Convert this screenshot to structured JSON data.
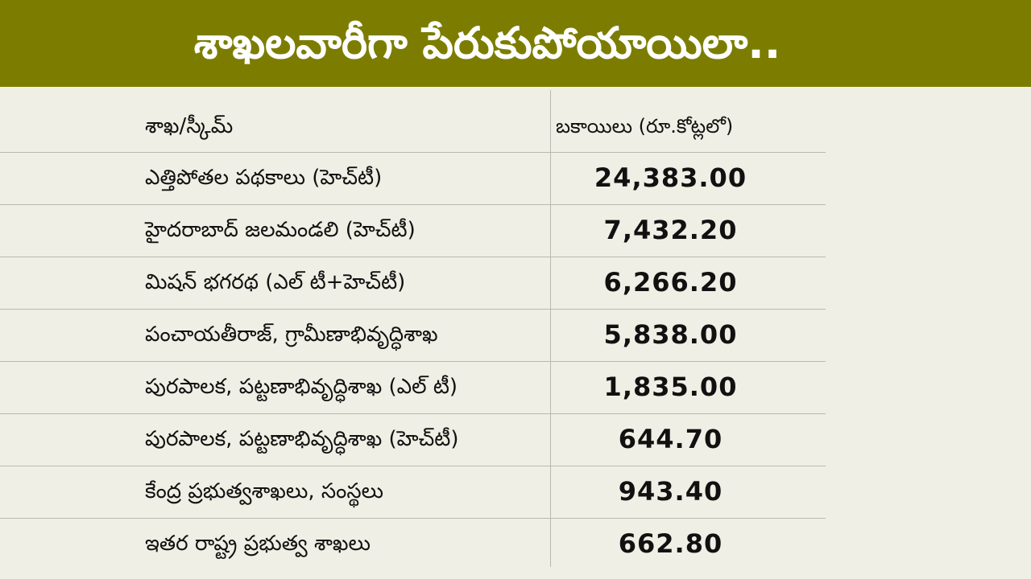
{
  "header": {
    "title": "శాఖలవారీగా పేరుకుపోయాయిలా.."
  },
  "table": {
    "columns": [
      "శాఖ/స్కీమ్",
      "బకాయిలు (రూ.కోట్లలో)"
    ],
    "rows": [
      [
        "ఎత్తిపోతల పథకాలు (హెచ్‌టీ)",
        "24,383.00"
      ],
      [
        "హైదరాబాద్ జలమండలి (హెచ్‌టీ)",
        "7,432.20"
      ],
      [
        "మిషన్ భగరథ (ఎల్ టీ+హెచ్‌టీ)",
        "6,266.20"
      ],
      [
        "పంచాయతీరాజ్, గ్రామీణాభివృద్ధిశాఖ",
        "5,838.00"
      ],
      [
        "పురపాలక, పట్టణాభివృద్ధిశాఖ (ఎల్ టీ)",
        "1,835.00"
      ],
      [
        "పురపాలక, పట్టణాభివృద్ధిశాఖ (హెచ్‌టీ)",
        "644.70"
      ],
      [
        "కేంద్ర ప్రభుత్వశాఖలు, సంస్థలు",
        "943.40"
      ],
      [
        "ఇతర రాష్ట్ర ప్రభుత్వ శాఖలు",
        "662.80"
      ]
    ]
  }
}
